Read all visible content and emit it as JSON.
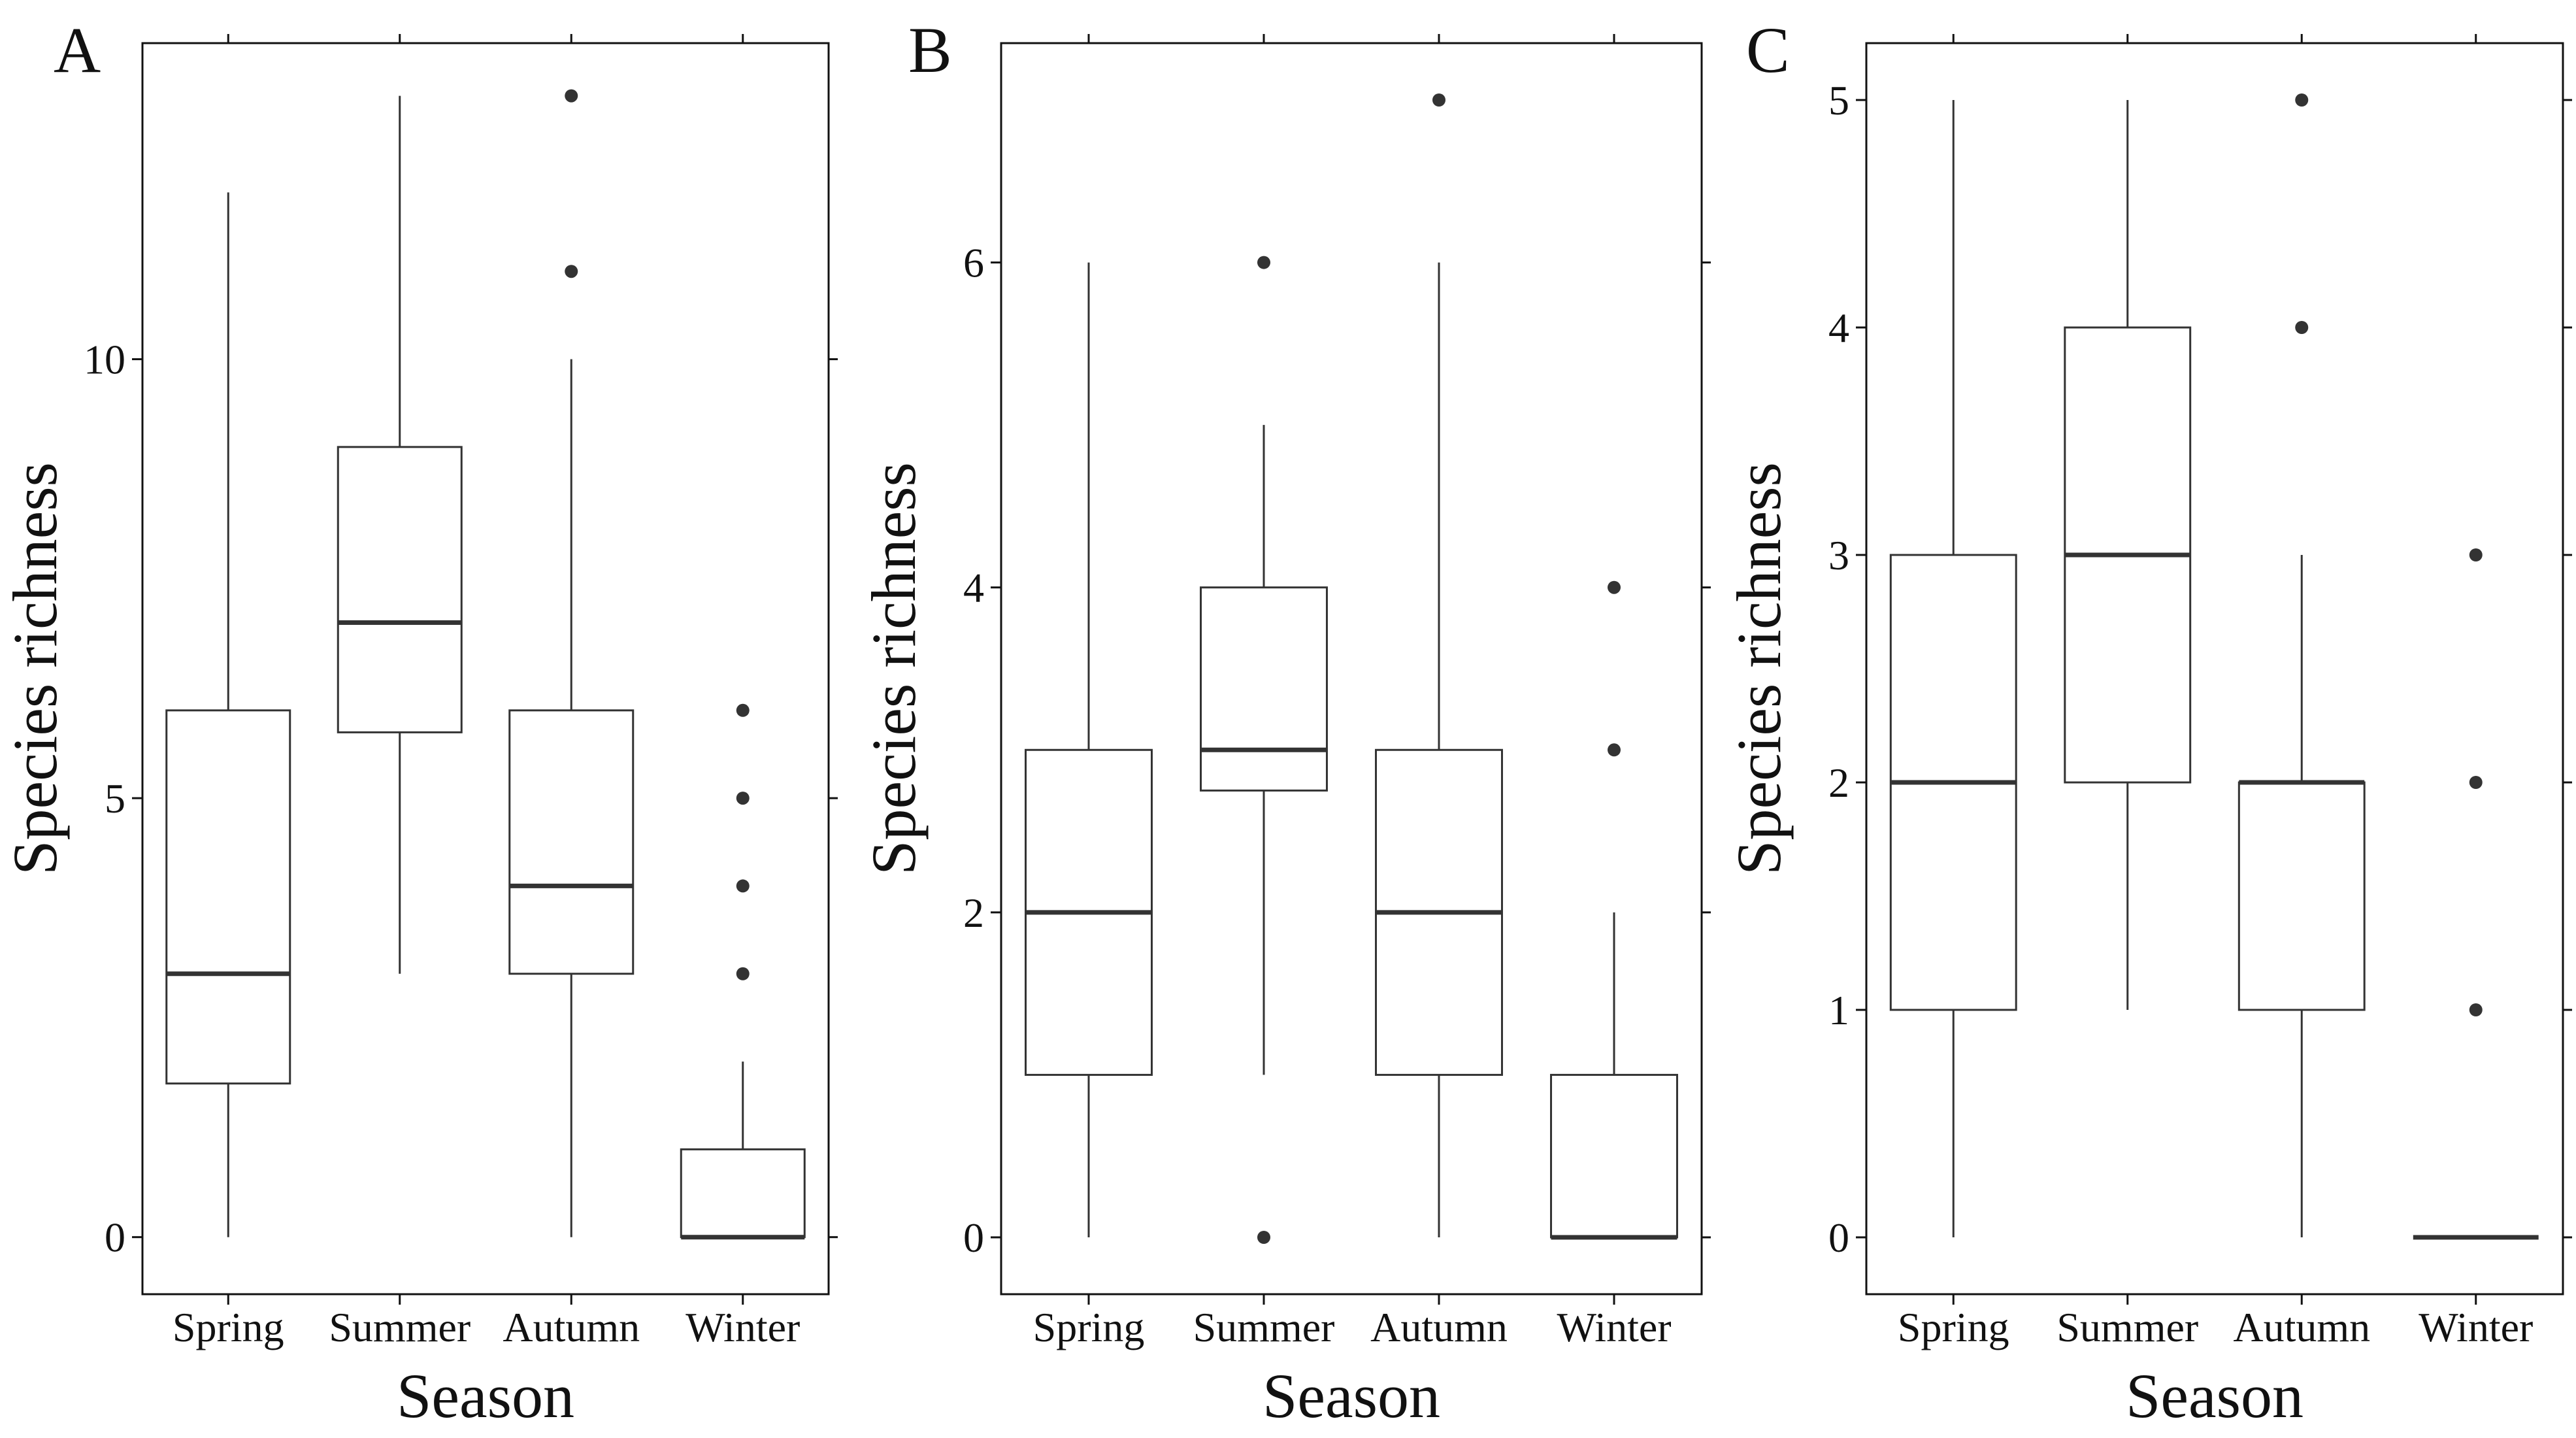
{
  "chart_data": [
    {
      "type": "box",
      "panel_label": "A",
      "xlabel": "Season",
      "ylabel": "Species richness",
      "categories": [
        "Spring",
        "Summer",
        "Autumn",
        "Winter"
      ],
      "ylim": [
        -0.65,
        13.6
      ],
      "yticks": [
        0,
        5,
        10
      ],
      "y_tick_labels": [
        "0",
        "5",
        "10"
      ],
      "boxes": [
        {
          "whisker_low": 0,
          "q1": 1.75,
          "median": 3,
          "q3": 6,
          "whisker_high": 11.9,
          "outliers": []
        },
        {
          "whisker_low": 3,
          "q1": 5.75,
          "median": 7,
          "q3": 9,
          "whisker_high": 13,
          "outliers": []
        },
        {
          "whisker_low": 0,
          "q1": 3,
          "median": 4,
          "q3": 6,
          "whisker_high": 10,
          "outliers": [
            11,
            13
          ]
        },
        {
          "whisker_low": 0,
          "q1": 0,
          "median": 0,
          "q3": 1,
          "whisker_high": 2,
          "outliers": [
            3,
            4,
            5,
            6
          ]
        }
      ],
      "grid": false
    },
    {
      "type": "box",
      "panel_label": "B",
      "xlabel": "Season",
      "ylabel": "Species richness",
      "categories": [
        "Spring",
        "Summer",
        "Autumn",
        "Winter"
      ],
      "ylim": [
        -0.35,
        7.35
      ],
      "yticks": [
        0,
        2,
        4,
        6
      ],
      "y_tick_labels": [
        "0",
        "2",
        "4",
        "6"
      ],
      "boxes": [
        {
          "whisker_low": 0,
          "q1": 1,
          "median": 2,
          "q3": 3,
          "whisker_high": 6,
          "outliers": []
        },
        {
          "whisker_low": 1,
          "q1": 2.75,
          "median": 3,
          "q3": 4,
          "whisker_high": 5,
          "outliers": [
            0,
            6
          ]
        },
        {
          "whisker_low": 0,
          "q1": 1,
          "median": 2,
          "q3": 3,
          "whisker_high": 6,
          "outliers": [
            7
          ]
        },
        {
          "whisker_low": 0,
          "q1": 0,
          "median": 0,
          "q3": 1,
          "whisker_high": 2,
          "outliers": [
            3,
            4
          ]
        }
      ],
      "grid": false
    },
    {
      "type": "box",
      "panel_label": "C",
      "xlabel": "Season",
      "ylabel": "Species richness",
      "categories": [
        "Spring",
        "Summer",
        "Autumn",
        "Winter"
      ],
      "ylim": [
        -0.25,
        5.25
      ],
      "yticks": [
        0,
        1,
        2,
        3,
        4,
        5
      ],
      "y_tick_labels": [
        "0",
        "1",
        "2",
        "3",
        "4",
        "5"
      ],
      "boxes": [
        {
          "whisker_low": 0,
          "q1": 1,
          "median": 2,
          "q3": 3,
          "whisker_high": 5,
          "outliers": []
        },
        {
          "whisker_low": 1,
          "q1": 2,
          "median": 3,
          "q3": 4,
          "whisker_high": 5,
          "outliers": []
        },
        {
          "whisker_low": 0,
          "q1": 1,
          "median": 2,
          "q3": 2,
          "whisker_high": 3,
          "outliers": [
            4,
            5
          ]
        },
        {
          "whisker_low": 0,
          "q1": 0,
          "median": 0,
          "q3": 0,
          "whisker_high": 0,
          "outliers": [
            1,
            2,
            3
          ]
        }
      ],
      "grid": false
    }
  ],
  "colors": {
    "box_line": "#333333",
    "median_line": "#333333",
    "outlier": "#333333",
    "frame": "#111111",
    "background": "#ffffff"
  }
}
